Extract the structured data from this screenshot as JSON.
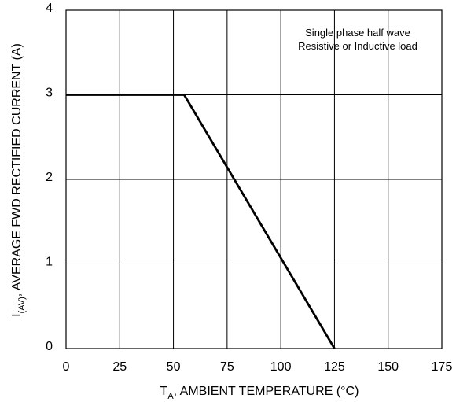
{
  "chart_data": {
    "type": "line",
    "xlabel": {
      "main": "T",
      "sub": "A",
      "rest": ", AMBIENT TEMPERATURE (°C)"
    },
    "ylabel": {
      "main": "I",
      "sub": "(AV)",
      "rest": ", AVERAGE FWD RECTIFIED CURRENT (A)"
    },
    "xlim": [
      0,
      175
    ],
    "ylim": [
      0,
      4
    ],
    "x_ticks": [
      "0",
      "25",
      "50",
      "75",
      "100",
      "125",
      "150",
      "175"
    ],
    "y_ticks": [
      "0",
      "1",
      "2",
      "3",
      "4"
    ],
    "grid": true,
    "annotation": [
      "Single phase half wave",
      "Resistive or Inductive load"
    ],
    "series": [
      {
        "x": [
          0,
          55,
          125
        ],
        "y": [
          3,
          3,
          0
        ]
      }
    ]
  }
}
